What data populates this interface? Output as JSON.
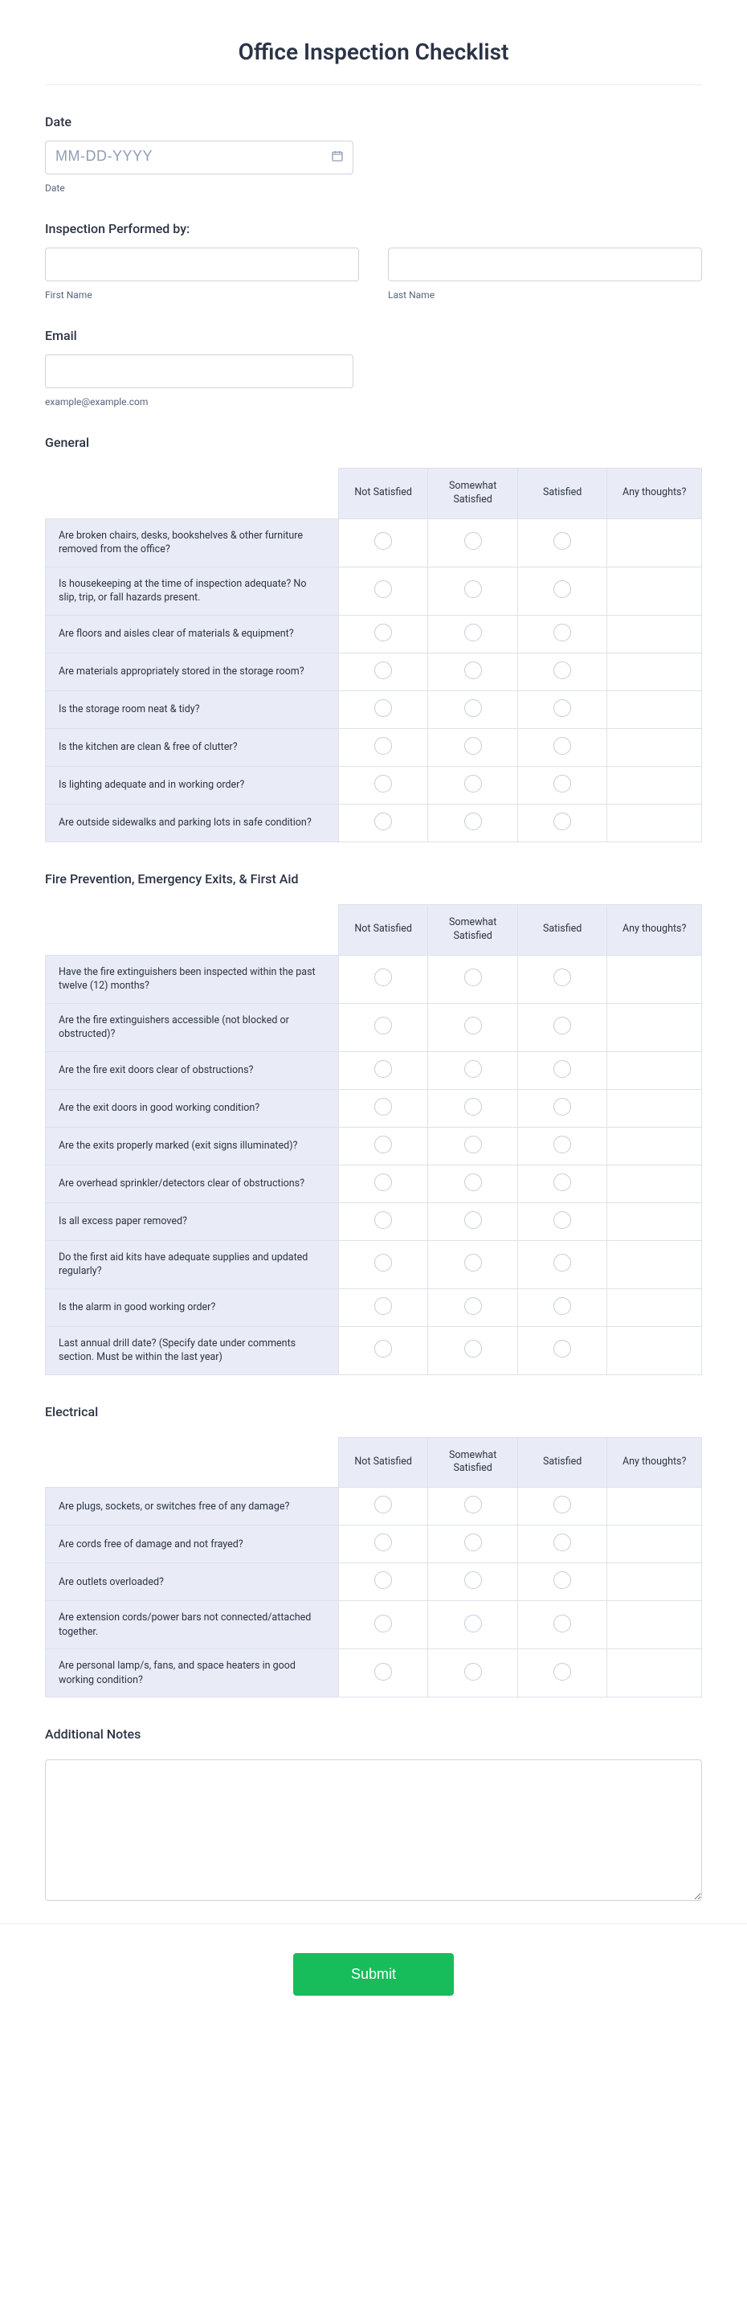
{
  "title": "Office Inspection Checklist",
  "date": {
    "label": "Date",
    "placeholder": "MM-DD-YYYY",
    "sublabel": "Date"
  },
  "inspector": {
    "label": "Inspection Performed by:",
    "first_sub": "First Name",
    "last_sub": "Last Name"
  },
  "email": {
    "label": "Email",
    "sublabel": "example@example.com"
  },
  "columns": {
    "c1": "Not Satisfied",
    "c2": "Somewhat Satisfied",
    "c3": "Satisfied",
    "c4": "Any thoughts?"
  },
  "sections": {
    "general": {
      "title": "General",
      "rows": [
        "Are broken chairs, desks, bookshelves & other furniture removed from the office?",
        "Is housekeeping at the time of inspection adequate? No slip, trip, or fall hazards present.",
        "Are floors and aisles clear of materials & equipment?",
        "Are materials appropriately stored in the storage room?",
        "Is the storage room neat & tidy?",
        "Is the kitchen are clean & free of clutter?",
        "Is lighting adequate and in working order?",
        "Are outside sidewalks and parking lots in safe condition?"
      ]
    },
    "fire": {
      "title": "Fire Prevention, Emergency Exits, & First Aid",
      "rows": [
        "Have the fire extinguishers been inspected within the past twelve (12) months?",
        "Are the fire extinguishers accessible (not blocked or obstructed)?",
        "Are the fire exit doors clear of obstructions?",
        "Are the exit doors in good working condition?",
        "Are the exits properly marked (exit signs illuminated)?",
        "Are overhead sprinkler/detectors clear of obstructions?",
        "Is all excess paper removed?",
        "Do the first aid kits have adequate supplies and updated regularly?",
        "Is the alarm in good working order?",
        "Last annual drill date? (Specify date under comments section. Must be within the last year)"
      ]
    },
    "electrical": {
      "title": "Electrical",
      "rows": [
        "Are plugs, sockets, or switches free of any damage?",
        "Are cords free of damage and not frayed?",
        "Are outlets overloaded?",
        "Are extension cords/power bars not connected/attached together.",
        "Are personal lamp/s, fans, and space heaters in good working condition?"
      ]
    }
  },
  "notes": {
    "title": "Additional Notes"
  },
  "submit": {
    "label": "Submit"
  },
  "colors": {
    "accent": "#18bd5b",
    "header_bg": "#e9ecf6",
    "border": "#dde1ea",
    "text": "#2c3345"
  }
}
